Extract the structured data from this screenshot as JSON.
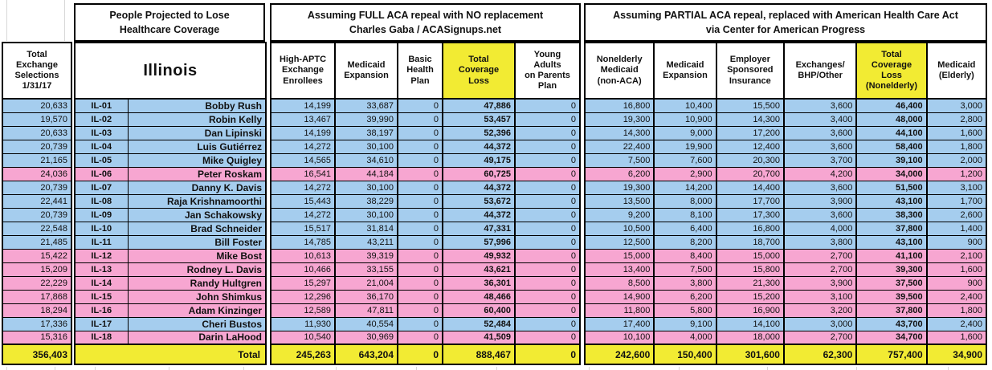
{
  "colors": {
    "democrat_blue": "#a5cdee",
    "republican_pink": "#f7a6d1",
    "highlight_yellow": "#f2eb33",
    "border_black": "#000000"
  },
  "left": {
    "header": "Total\nExchange\nSelections\n1/31/17"
  },
  "lose": {
    "band": "People Projected to Lose\nHealthcare Coverage",
    "state": "Illinois"
  },
  "full": {
    "band": "Assuming FULL ACA repeal with NO replacement\nCharles Gaba / ACASignups.net",
    "cols": [
      "High-APTC\nExchange\nEnrollees",
      "Medicaid\nExpansion",
      "Basic\nHealth\nPlan",
      "Total\nCoverage\nLoss",
      "Young\nAdults\non Parents\nPlan"
    ]
  },
  "partial": {
    "band": "Assuming PARTIAL ACA repeal, replaced with American Health Care Act\nvia Center for American Progress",
    "cols": [
      "Nonelderly\nMedicaid\n(non-ACA)",
      "Medicaid\nExpansion",
      "Employer\nSponsored\nInsurance",
      "Exchanges/\nBHP/Other",
      "Total\nCoverage\nLoss\n(Nonelderly)",
      "Medicaid\n(Elderly)"
    ]
  },
  "total_label": "Total",
  "totals": {
    "exch": "356,403",
    "f_aptc": "245,263",
    "f_mede": "643,204",
    "f_bhp": "0",
    "f_total": "888,467",
    "f_young": "0",
    "p_nonmed": "242,600",
    "p_mede": "150,400",
    "p_esi": "301,600",
    "p_exch": "62,300",
    "p_total": "757,400",
    "p_meld": "34,900"
  },
  "rows": [
    {
      "district": "IL-01",
      "name": "Bobby Rush",
      "party": "D",
      "exch": "20,633",
      "f_aptc": "14,199",
      "f_mede": "33,687",
      "f_bhp": "0",
      "f_total": "47,886",
      "f_young": "0",
      "p_nonmed": "16,800",
      "p_mede": "10,400",
      "p_esi": "15,500",
      "p_exch": "3,600",
      "p_total": "46,400",
      "p_meld": "3,000"
    },
    {
      "district": "IL-02",
      "name": "Robin Kelly",
      "party": "D",
      "exch": "19,570",
      "f_aptc": "13,467",
      "f_mede": "39,990",
      "f_bhp": "0",
      "f_total": "53,457",
      "f_young": "0",
      "p_nonmed": "19,300",
      "p_mede": "10,900",
      "p_esi": "14,300",
      "p_exch": "3,400",
      "p_total": "48,000",
      "p_meld": "2,800"
    },
    {
      "district": "IL-03",
      "name": "Dan Lipinski",
      "party": "D",
      "exch": "20,633",
      "f_aptc": "14,199",
      "f_mede": "38,197",
      "f_bhp": "0",
      "f_total": "52,396",
      "f_young": "0",
      "p_nonmed": "14,300",
      "p_mede": "9,000",
      "p_esi": "17,200",
      "p_exch": "3,600",
      "p_total": "44,100",
      "p_meld": "1,600"
    },
    {
      "district": "IL-04",
      "name": "Luis Gutiérrez",
      "party": "D",
      "exch": "20,739",
      "f_aptc": "14,272",
      "f_mede": "30,100",
      "f_bhp": "0",
      "f_total": "44,372",
      "f_young": "0",
      "p_nonmed": "22,400",
      "p_mede": "19,900",
      "p_esi": "12,400",
      "p_exch": "3,600",
      "p_total": "58,400",
      "p_meld": "1,800"
    },
    {
      "district": "IL-05",
      "name": "Mike Quigley",
      "party": "D",
      "exch": "21,165",
      "f_aptc": "14,565",
      "f_mede": "34,610",
      "f_bhp": "0",
      "f_total": "49,175",
      "f_young": "0",
      "p_nonmed": "7,500",
      "p_mede": "7,600",
      "p_esi": "20,300",
      "p_exch": "3,700",
      "p_total": "39,100",
      "p_meld": "2,000"
    },
    {
      "district": "IL-06",
      "name": "Peter Roskam",
      "party": "R",
      "exch": "24,036",
      "f_aptc": "16,541",
      "f_mede": "44,184",
      "f_bhp": "0",
      "f_total": "60,725",
      "f_young": "0",
      "p_nonmed": "6,200",
      "p_mede": "2,900",
      "p_esi": "20,700",
      "p_exch": "4,200",
      "p_total": "34,000",
      "p_meld": "1,200"
    },
    {
      "district": "IL-07",
      "name": "Danny K. Davis",
      "party": "D",
      "exch": "20,739",
      "f_aptc": "14,272",
      "f_mede": "30,100",
      "f_bhp": "0",
      "f_total": "44,372",
      "f_young": "0",
      "p_nonmed": "19,300",
      "p_mede": "14,200",
      "p_esi": "14,400",
      "p_exch": "3,600",
      "p_total": "51,500",
      "p_meld": "3,100"
    },
    {
      "district": "IL-08",
      "name": "Raja Krishnamoorthi",
      "party": "D",
      "exch": "22,441",
      "f_aptc": "15,443",
      "f_mede": "38,229",
      "f_bhp": "0",
      "f_total": "53,672",
      "f_young": "0",
      "p_nonmed": "13,500",
      "p_mede": "8,000",
      "p_esi": "17,700",
      "p_exch": "3,900",
      "p_total": "43,100",
      "p_meld": "1,700"
    },
    {
      "district": "IL-09",
      "name": "Jan Schakowsky",
      "party": "D",
      "exch": "20,739",
      "f_aptc": "14,272",
      "f_mede": "30,100",
      "f_bhp": "0",
      "f_total": "44,372",
      "f_young": "0",
      "p_nonmed": "9,200",
      "p_mede": "8,100",
      "p_esi": "17,300",
      "p_exch": "3,600",
      "p_total": "38,300",
      "p_meld": "2,600"
    },
    {
      "district": "IL-10",
      "name": "Brad Schneider",
      "party": "D",
      "exch": "22,548",
      "f_aptc": "15,517",
      "f_mede": "31,814",
      "f_bhp": "0",
      "f_total": "47,331",
      "f_young": "0",
      "p_nonmed": "10,500",
      "p_mede": "6,400",
      "p_esi": "16,800",
      "p_exch": "4,000",
      "p_total": "37,800",
      "p_meld": "1,400"
    },
    {
      "district": "IL-11",
      "name": "Bill Foster",
      "party": "D",
      "exch": "21,485",
      "f_aptc": "14,785",
      "f_mede": "43,211",
      "f_bhp": "0",
      "f_total": "57,996",
      "f_young": "0",
      "p_nonmed": "12,500",
      "p_mede": "8,200",
      "p_esi": "18,700",
      "p_exch": "3,800",
      "p_total": "43,100",
      "p_meld": "900"
    },
    {
      "district": "IL-12",
      "name": "Mike Bost",
      "party": "R",
      "exch": "15,422",
      "f_aptc": "10,613",
      "f_mede": "39,319",
      "f_bhp": "0",
      "f_total": "49,932",
      "f_young": "0",
      "p_nonmed": "15,000",
      "p_mede": "8,400",
      "p_esi": "15,000",
      "p_exch": "2,700",
      "p_total": "41,100",
      "p_meld": "2,100"
    },
    {
      "district": "IL-13",
      "name": "Rodney L. Davis",
      "party": "R",
      "exch": "15,209",
      "f_aptc": "10,466",
      "f_mede": "33,155",
      "f_bhp": "0",
      "f_total": "43,621",
      "f_young": "0",
      "p_nonmed": "13,400",
      "p_mede": "7,500",
      "p_esi": "15,800",
      "p_exch": "2,700",
      "p_total": "39,300",
      "p_meld": "1,600"
    },
    {
      "district": "IL-14",
      "name": "Randy Hultgren",
      "party": "R",
      "exch": "22,229",
      "f_aptc": "15,297",
      "f_mede": "21,004",
      "f_bhp": "0",
      "f_total": "36,301",
      "f_young": "0",
      "p_nonmed": "8,500",
      "p_mede": "3,800",
      "p_esi": "21,300",
      "p_exch": "3,900",
      "p_total": "37,500",
      "p_meld": "900"
    },
    {
      "district": "IL-15",
      "name": "John Shimkus",
      "party": "R",
      "exch": "17,868",
      "f_aptc": "12,296",
      "f_mede": "36,170",
      "f_bhp": "0",
      "f_total": "48,466",
      "f_young": "0",
      "p_nonmed": "14,900",
      "p_mede": "6,200",
      "p_esi": "15,200",
      "p_exch": "3,100",
      "p_total": "39,500",
      "p_meld": "2,400"
    },
    {
      "district": "IL-16",
      "name": "Adam Kinzinger",
      "party": "R",
      "exch": "18,294",
      "f_aptc": "12,589",
      "f_mede": "47,811",
      "f_bhp": "0",
      "f_total": "60,400",
      "f_young": "0",
      "p_nonmed": "11,800",
      "p_mede": "5,800",
      "p_esi": "16,900",
      "p_exch": "3,200",
      "p_total": "37,800",
      "p_meld": "1,800"
    },
    {
      "district": "IL-17",
      "name": "Cheri Bustos",
      "party": "D",
      "exch": "17,336",
      "f_aptc": "11,930",
      "f_mede": "40,554",
      "f_bhp": "0",
      "f_total": "52,484",
      "f_young": "0",
      "p_nonmed": "17,400",
      "p_mede": "9,100",
      "p_esi": "14,100",
      "p_exch": "3,000",
      "p_total": "43,700",
      "p_meld": "2,400"
    },
    {
      "district": "IL-18",
      "name": "Darin LaHood",
      "party": "R",
      "exch": "15,316",
      "f_aptc": "10,540",
      "f_mede": "30,969",
      "f_bhp": "0",
      "f_total": "41,509",
      "f_young": "0",
      "p_nonmed": "10,100",
      "p_mede": "4,000",
      "p_esi": "18,000",
      "p_exch": "2,700",
      "p_total": "34,700",
      "p_meld": "1,600"
    }
  ]
}
